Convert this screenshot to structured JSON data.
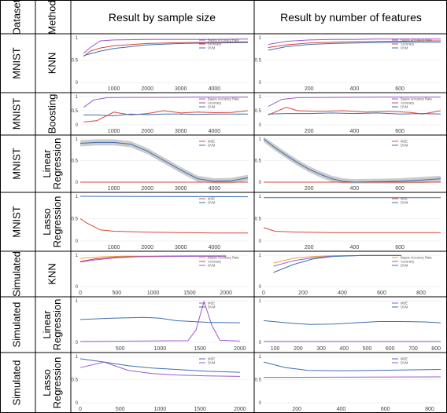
{
  "headers": {
    "dataset": "Dataset",
    "method": "Method",
    "col1": "Result by sample size",
    "col2": "Result by number of features"
  },
  "colors": {
    "bayes": "#e8a33a",
    "accuracy": "#d9453b",
    "dvm": "#3b6fb0",
    "purple": "#9b59d0",
    "band": "#9a9a9a"
  },
  "rows": [
    {
      "dataset": "MNIST",
      "method": [
        "KNN"
      ]
    },
    {
      "dataset": "MNIST",
      "method": [
        "Boosting"
      ]
    },
    {
      "dataset": "MNIST",
      "method": [
        "Linear",
        "Regression"
      ]
    },
    {
      "dataset": "MNIST",
      "method": [
        "Lasso",
        "Regression"
      ]
    },
    {
      "dataset": "Simulated",
      "method": [
        "KNN"
      ]
    },
    {
      "dataset": "Simulated",
      "method": [
        "Linear",
        "Regression"
      ]
    },
    {
      "dataset": "Simulated",
      "method": [
        "Lasso",
        "Regression"
      ]
    }
  ],
  "chart_data": [
    {
      "type": "line",
      "yticks": [
        "1",
        "0.5",
        "0"
      ],
      "xticks": [
        "1000",
        "2000",
        "3000",
        "4000"
      ],
      "xlim": [
        0,
        5000
      ],
      "legend": [
        "Bayes Accuracy Rate",
        "Accuracy",
        "DVM"
      ],
      "series": [
        {
          "name": "Bayes Accuracy Rate",
          "color": "purple",
          "x": [
            100,
            300,
            600,
            1000,
            2000,
            3000,
            4000,
            5000
          ],
          "y": [
            0.65,
            0.78,
            0.93,
            0.95,
            0.96,
            0.96,
            0.96,
            0.97
          ]
        },
        {
          "name": "Accuracy",
          "color": "accuracy",
          "x": [
            100,
            300,
            600,
            1000,
            2000,
            3000,
            4000,
            5000
          ],
          "y": [
            0.58,
            0.7,
            0.77,
            0.82,
            0.87,
            0.89,
            0.9,
            0.91
          ]
        },
        {
          "name": "DVM",
          "color": "dvm",
          "x": [
            100,
            300,
            600,
            1000,
            2000,
            3000,
            4000,
            5000
          ],
          "y": [
            0.6,
            0.64,
            0.7,
            0.76,
            0.84,
            0.87,
            0.88,
            0.89
          ]
        }
      ]
    },
    {
      "type": "line",
      "yticks": [
        "1",
        "0.5",
        "0"
      ],
      "xticks": [
        "200",
        "400",
        "600"
      ],
      "xlim": [
        0,
        780
      ],
      "legend": [
        "Bayes Accuracy Rate",
        "Accuracy",
        "DVM"
      ],
      "series": [
        {
          "name": "Bayes Accuracy Rate",
          "color": "purple",
          "x": [
            20,
            100,
            200,
            300,
            400,
            500,
            600,
            700,
            780
          ],
          "y": [
            0.85,
            0.92,
            0.95,
            0.96,
            0.96,
            0.97,
            0.97,
            0.97,
            0.97
          ]
        },
        {
          "name": "Accuracy",
          "color": "accuracy",
          "x": [
            20,
            100,
            200,
            300,
            400,
            500,
            600,
            700,
            780
          ],
          "y": [
            0.78,
            0.84,
            0.88,
            0.9,
            0.91,
            0.92,
            0.92,
            0.93,
            0.93
          ]
        },
        {
          "name": "DVM",
          "color": "dvm",
          "x": [
            20,
            100,
            200,
            300,
            400,
            500,
            600,
            700,
            780
          ],
          "y": [
            0.72,
            0.8,
            0.85,
            0.87,
            0.88,
            0.89,
            0.9,
            0.9,
            0.9
          ]
        }
      ]
    },
    {
      "type": "line",
      "yticks": [
        "1",
        "0.5",
        "0"
      ],
      "xticks": [
        "1000",
        "2000",
        "3000",
        "4000"
      ],
      "xlim": [
        0,
        5000
      ],
      "legend": [
        "Bayes Accuracy Rate",
        "Accuracy",
        "DVM"
      ],
      "series": [
        {
          "name": "Bayes Accuracy Rate",
          "color": "purple",
          "x": [
            100,
            400,
            800,
            1500,
            2500,
            3500,
            4500,
            5000
          ],
          "y": [
            0.62,
            0.88,
            0.96,
            0.97,
            0.97,
            0.98,
            0.98,
            0.98
          ]
        },
        {
          "name": "Accuracy",
          "color": "accuracy",
          "x": [
            100,
            500,
            1000,
            1500,
            2000,
            2500,
            3000,
            3500,
            4000,
            4500,
            5000
          ],
          "y": [
            0.1,
            0.15,
            0.45,
            0.35,
            0.4,
            0.5,
            0.42,
            0.45,
            0.43,
            0.44,
            0.5
          ]
        },
        {
          "name": "DVM",
          "color": "dvm",
          "x": [
            100,
            500,
            1000,
            1500,
            2000,
            2500,
            3000,
            3500,
            4000,
            4500,
            5000
          ],
          "y": [
            0.35,
            0.35,
            0.32,
            0.38,
            0.36,
            0.38,
            0.38,
            0.37,
            0.38,
            0.38,
            0.38
          ]
        }
      ]
    },
    {
      "type": "line",
      "yticks": [
        "1",
        "0.5",
        "0"
      ],
      "xticks": [
        "200",
        "400",
        "600"
      ],
      "xlim": [
        0,
        780
      ],
      "legend": [
        "Bayes Accuracy Rate",
        "Accuracy",
        "DVM"
      ],
      "series": [
        {
          "name": "Bayes Accuracy Rate",
          "color": "purple",
          "x": [
            20,
            80,
            150,
            300,
            500,
            780
          ],
          "y": [
            0.65,
            0.9,
            0.96,
            0.97,
            0.98,
            0.98
          ]
        },
        {
          "name": "Accuracy",
          "color": "accuracy",
          "x": [
            20,
            100,
            150,
            250,
            350,
            450,
            550,
            650,
            700,
            780
          ],
          "y": [
            0.35,
            0.62,
            0.5,
            0.48,
            0.5,
            0.45,
            0.48,
            0.44,
            0.38,
            0.5
          ]
        },
        {
          "name": "DVM",
          "color": "dvm",
          "x": [
            20,
            100,
            200,
            300,
            400,
            500,
            600,
            700,
            780
          ],
          "y": [
            0.38,
            0.4,
            0.4,
            0.42,
            0.4,
            0.42,
            0.38,
            0.4,
            0.38
          ]
        }
      ]
    },
    {
      "type": "line",
      "yticks": [
        "1",
        "0.5",
        "0"
      ],
      "xticks": [
        "1000",
        "2000",
        "3000",
        "4000"
      ],
      "xlim": [
        0,
        5000
      ],
      "band": true,
      "legend": [
        "MSE",
        "DVM"
      ],
      "series": [
        {
          "name": "MSE",
          "color": "accuracy",
          "x": [
            0,
            5000
          ],
          "y": [
            0,
            0
          ]
        },
        {
          "name": "DVM",
          "color": "dvm",
          "x": [
            0,
            500,
            1000,
            1500,
            2000,
            2500,
            3000,
            3500,
            4000,
            4500,
            5000
          ],
          "y": [
            0.9,
            0.92,
            0.92,
            0.88,
            0.72,
            0.5,
            0.28,
            0.08,
            0.02,
            0.03,
            0.1
          ]
        }
      ]
    },
    {
      "type": "line",
      "yticks": [
        "1",
        "0.5",
        "0"
      ],
      "xticks": [
        "200",
        "400",
        "600"
      ],
      "xlim": [
        0,
        780
      ],
      "band": true,
      "legend": [
        "MSE",
        "DVM"
      ],
      "series": [
        {
          "name": "MSE",
          "color": "accuracy",
          "x": [
            0,
            780
          ],
          "y": [
            0,
            0
          ]
        },
        {
          "name": "DVM",
          "color": "dvm",
          "x": [
            0,
            50,
            100,
            150,
            200,
            250,
            300,
            350,
            400,
            500,
            600,
            700,
            780
          ],
          "y": [
            1,
            0.8,
            0.62,
            0.45,
            0.3,
            0.18,
            0.08,
            0.02,
            0,
            0.01,
            0.02,
            0.05,
            0.08
          ]
        }
      ]
    },
    {
      "type": "line",
      "yticks": [
        "1",
        "0.5",
        "0"
      ],
      "xticks": [
        "1000",
        "2000",
        "3000",
        "4000"
      ],
      "xlim": [
        0,
        5000
      ],
      "legend": [
        "MSE",
        "DVM"
      ],
      "series": [
        {
          "name": "MSE",
          "color": "accuracy",
          "x": [
            0,
            200,
            600,
            1000,
            2000,
            3000,
            4000,
            5000
          ],
          "y": [
            0.5,
            0.4,
            0.25,
            0.22,
            0.2,
            0.19,
            0.18,
            0.18
          ]
        },
        {
          "name": "DVM",
          "color": "dvm",
          "x": [
            0,
            5000
          ],
          "y": [
            1,
            0.99
          ]
        }
      ]
    },
    {
      "type": "line",
      "yticks": [
        "1",
        "0.5",
        "0"
      ],
      "xticks": [
        "200",
        "400",
        "600"
      ],
      "xlim": [
        0,
        780
      ],
      "legend": [
        "MSE",
        "DVM"
      ],
      "series": [
        {
          "name": "MSE",
          "color": "accuracy",
          "x": [
            0,
            50,
            150,
            300,
            500,
            780
          ],
          "y": [
            0.3,
            0.22,
            0.2,
            0.19,
            0.19,
            0.19
          ]
        },
        {
          "name": "DVM",
          "color": "dvm",
          "x": [
            0,
            780
          ],
          "y": [
            0.97,
            0.97
          ]
        }
      ]
    },
    {
      "type": "line",
      "yticks": [
        "1",
        "0"
      ],
      "xticks": [
        "0",
        "500",
        "1000",
        "1500",
        "2000"
      ],
      "xlim": [
        0,
        2300
      ],
      "xtick_vals": [
        0,
        500,
        1000,
        1500,
        2000
      ],
      "legend": [
        "Bayes Accuracy Rate",
        "Accuracy",
        "DVM"
      ],
      "series": [
        {
          "name": "Bayes Accuracy Rate",
          "color": "bayes",
          "x": [
            0,
            300,
            600,
            1000,
            1500,
            2000
          ],
          "y": [
            0.9,
            0.95,
            0.97,
            0.97,
            0.98,
            0.98
          ]
        },
        {
          "name": "Accuracy",
          "color": "accuracy",
          "x": [
            0,
            200,
            500,
            800,
            1200,
            2000
          ],
          "y": [
            0.8,
            0.88,
            0.94,
            0.96,
            0.97,
            0.97
          ]
        },
        {
          "name": "DVM",
          "color": "purple",
          "x": [
            0,
            200,
            500,
            800,
            1200,
            2000
          ],
          "y": [
            0.78,
            0.85,
            0.92,
            0.95,
            0.96,
            0.97
          ]
        }
      ]
    },
    {
      "type": "line",
      "yticks": [
        "1",
        "0"
      ],
      "xticks": [
        "0",
        "200",
        "400",
        "600",
        "800"
      ],
      "xlim": [
        0,
        900
      ],
      "xtick_vals": [
        0,
        200,
        400,
        600,
        800
      ],
      "legend": [
        "Bayes Accuracy Rate",
        "Accuracy",
        "DVM"
      ],
      "series": [
        {
          "name": "Bayes Accuracy Rate",
          "color": "bayes",
          "x": [
            50,
            150,
            250,
            350,
            500,
            700
          ],
          "y": [
            0.75,
            0.9,
            0.96,
            0.98,
            0.99,
            0.99
          ]
        },
        {
          "name": "Accuracy",
          "color": "purple",
          "x": [
            50,
            150,
            250,
            350,
            500,
            700
          ],
          "y": [
            0.65,
            0.82,
            0.92,
            0.97,
            0.99,
            0.99
          ]
        },
        {
          "name": "DVM",
          "color": "dvm",
          "x": [
            50,
            150,
            250,
            350,
            500,
            700
          ],
          "y": [
            0.45,
            0.7,
            0.88,
            0.96,
            0.99,
            0.99
          ]
        }
      ]
    },
    {
      "type": "line",
      "yticks": [
        "1",
        "0"
      ],
      "xticks": [
        "500",
        "1000",
        "1500",
        "2000"
      ],
      "xlim": [
        0,
        2100
      ],
      "xtick_vals": [
        500,
        1000,
        1500,
        2000
      ],
      "legend": [
        "MSE",
        "DVM"
      ],
      "series": [
        {
          "name": "MSE",
          "color": "purple",
          "x": [
            0,
            1350,
            1450,
            1550,
            1650,
            1750,
            2000
          ],
          "y": [
            0.02,
            0.04,
            0.3,
            0.98,
            0.4,
            0.05,
            0.03
          ]
        },
        {
          "name": "DVM",
          "color": "dvm",
          "x": [
            0,
            400,
            800,
            1000,
            1200,
            1600,
            2000
          ],
          "y": [
            0.55,
            0.58,
            0.6,
            0.58,
            0.52,
            0.48,
            0.47
          ]
        }
      ]
    },
    {
      "type": "line",
      "yticks": [
        "1",
        "0"
      ],
      "xticks": [
        "100",
        "200",
        "300",
        "400",
        "500",
        "600",
        "700",
        "800"
      ],
      "xlim": [
        50,
        820
      ],
      "xtick_vals": [
        100,
        200,
        300,
        400,
        500,
        600,
        700,
        800
      ],
      "legend": [
        "MSE",
        "DVM"
      ],
      "series": [
        {
          "name": "MSE",
          "color": "purple",
          "x": [
            50,
            820
          ],
          "y": [
            0.02,
            0.02
          ]
        },
        {
          "name": "DVM",
          "color": "dvm",
          "x": [
            50,
            150,
            250,
            350,
            450,
            550,
            650,
            750,
            820
          ],
          "y": [
            0.52,
            0.47,
            0.43,
            0.44,
            0.47,
            0.5,
            0.5,
            0.49,
            0.47
          ]
        }
      ]
    },
    {
      "type": "line",
      "yticks": [
        "1",
        "0.5",
        "0"
      ],
      "xticks": [
        "0",
        "500",
        "1000",
        "1500",
        "2000"
      ],
      "xlim": [
        0,
        2100
      ],
      "xtick_vals": [
        0,
        500,
        1000,
        1500,
        2000
      ],
      "legend": [
        "MSE",
        "DVM"
      ],
      "series": [
        {
          "name": "MSE",
          "color": "dvm",
          "x": [
            0,
            300,
            600,
            900,
            1200,
            1600,
            2000
          ],
          "y": [
            0.95,
            0.88,
            0.8,
            0.75,
            0.72,
            0.68,
            0.66
          ]
        },
        {
          "name": "DVM",
          "color": "purple",
          "x": [
            0,
            300,
            600,
            900,
            1200,
            1600,
            2000
          ],
          "y": [
            0.76,
            0.88,
            0.7,
            0.63,
            0.6,
            0.58,
            0.57
          ]
        }
      ]
    },
    {
      "type": "line",
      "yticks": [
        "1",
        "0.5",
        "0"
      ],
      "xticks": [
        "200",
        "400",
        "600",
        "800"
      ],
      "xlim": [
        50,
        850
      ],
      "xtick_vals": [
        200,
        400,
        600,
        800
      ],
      "legend": [
        "MSE",
        "DVM"
      ],
      "series": [
        {
          "name": "MSE",
          "color": "dvm",
          "x": [
            50,
            150,
            250,
            400,
            550,
            700,
            850
          ],
          "y": [
            0.88,
            0.76,
            0.7,
            0.69,
            0.7,
            0.71,
            0.72
          ]
        },
        {
          "name": "DVM",
          "color": "purple",
          "x": [
            50,
            850
          ],
          "y": [
            0.55,
            0.56
          ]
        }
      ]
    }
  ]
}
